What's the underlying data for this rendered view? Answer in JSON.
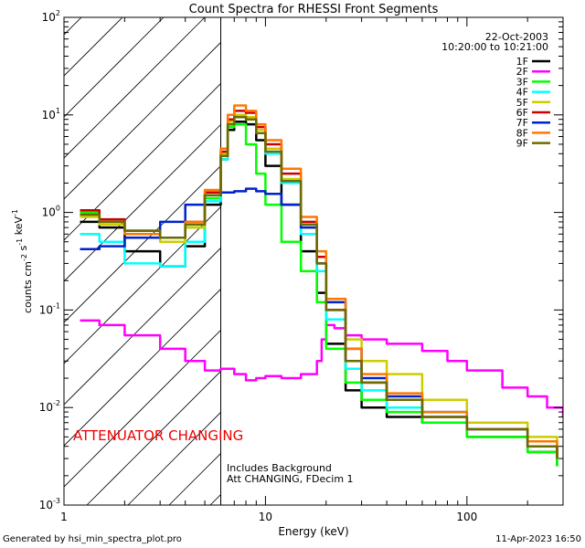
{
  "chart_data": {
    "type": "line",
    "title": "Count Spectra for RHESSI Front Segments",
    "xlabel": "Energy (keV)",
    "ylabel": "counts cm^-2 s^-1 keV^-1",
    "xscale": "log",
    "yscale": "log",
    "xlim": [
      1,
      300
    ],
    "ylim": [
      0.001,
      100
    ],
    "x_tick_labels": [
      "1",
      "10",
      "100"
    ],
    "y_tick_labels": [
      "10^-3",
      "10^-2",
      "10^-1",
      "10^0",
      "10^1",
      "10^2"
    ],
    "date": "22-Oct-2003",
    "time_range": "10:20:00 to 10:21:00",
    "attenuator_label": "ATTENUATOR CHANGING",
    "note_lines": [
      "Includes Background",
      "Att CHANGING, FDecim 1"
    ],
    "attenuator_region_max_keV": 6,
    "series": [
      {
        "name": "1F",
        "color": "#000000",
        "x": [
          1.2,
          1.5,
          2,
          3,
          4,
          5,
          6,
          6.5,
          7,
          8,
          9,
          10,
          12,
          15,
          18,
          20,
          25,
          30,
          40,
          60,
          100,
          200,
          280
        ],
        "y": [
          0.8,
          0.7,
          0.4,
          0.28,
          0.45,
          1.2,
          3.5,
          7.0,
          8.5,
          8.0,
          5.5,
          3.0,
          1.2,
          0.4,
          0.15,
          0.045,
          0.015,
          0.01,
          0.008,
          0.007,
          0.005,
          0.0035,
          0.0025
        ]
      },
      {
        "name": "2F",
        "color": "#ff00ff",
        "x": [
          1.2,
          1.5,
          2,
          3,
          4,
          5,
          6,
          7,
          8,
          9,
          10,
          12,
          15,
          18,
          19,
          20,
          22,
          25,
          30,
          40,
          60,
          80,
          100,
          150,
          200,
          250,
          300
        ],
        "y": [
          0.078,
          0.07,
          0.055,
          0.04,
          0.03,
          0.024,
          0.025,
          0.022,
          0.019,
          0.02,
          0.021,
          0.02,
          0.022,
          0.03,
          0.05,
          0.07,
          0.065,
          0.055,
          0.05,
          0.045,
          0.038,
          0.03,
          0.024,
          0.016,
          0.013,
          0.01,
          0.008
        ]
      },
      {
        "name": "3F",
        "color": "#00ff00",
        "x": [
          1.2,
          1.5,
          2,
          3,
          4,
          5,
          6,
          6.5,
          7,
          8,
          9,
          10,
          12,
          15,
          18,
          20,
          25,
          30,
          40,
          60,
          100,
          200,
          280
        ],
        "y": [
          1.0,
          0.8,
          0.6,
          0.55,
          0.7,
          1.4,
          3.8,
          7.5,
          8.0,
          5.0,
          2.5,
          1.2,
          0.5,
          0.25,
          0.12,
          0.04,
          0.018,
          0.012,
          0.009,
          0.007,
          0.005,
          0.0035,
          0.0025
        ]
      },
      {
        "name": "4F",
        "color": "#00ffff",
        "x": [
          1.2,
          1.5,
          2,
          3,
          4,
          5,
          6,
          6.5,
          7,
          8,
          9,
          10,
          12,
          15,
          18,
          20,
          25,
          30,
          40,
          60,
          100,
          200,
          280
        ],
        "y": [
          0.6,
          0.5,
          0.3,
          0.28,
          0.5,
          1.3,
          3.5,
          8.0,
          9.5,
          9.0,
          6.5,
          4.0,
          2.0,
          0.6,
          0.25,
          0.08,
          0.025,
          0.015,
          0.01,
          0.008,
          0.006,
          0.004,
          0.003
        ]
      },
      {
        "name": "5F",
        "color": "#cccc00",
        "x": [
          1.2,
          1.5,
          2,
          3,
          4,
          5,
          6,
          6.5,
          7,
          8,
          9,
          10,
          12,
          15,
          18,
          20,
          25,
          30,
          40,
          60,
          100,
          200,
          280
        ],
        "y": [
          0.9,
          0.75,
          0.6,
          0.5,
          0.7,
          1.5,
          4.0,
          8.5,
          10.0,
          9.5,
          7.0,
          4.5,
          2.2,
          0.7,
          0.3,
          0.12,
          0.05,
          0.03,
          0.022,
          0.012,
          0.007,
          0.005,
          0.0035
        ]
      },
      {
        "name": "6F",
        "color": "#cc0000",
        "x": [
          1.2,
          1.5,
          2,
          3,
          4,
          5,
          6,
          6.5,
          7,
          8,
          9,
          10,
          12,
          15,
          18,
          20,
          25,
          30,
          40,
          60,
          100,
          200,
          280
        ],
        "y": [
          1.05,
          0.85,
          0.65,
          0.55,
          0.8,
          1.6,
          4.2,
          9.0,
          11.0,
          10.5,
          7.5,
          5.0,
          2.5,
          0.8,
          0.35,
          0.1,
          0.03,
          0.018,
          0.012,
          0.008,
          0.006,
          0.004,
          0.003
        ]
      },
      {
        "name": "7F",
        "color": "#0022cc",
        "x": [
          1.2,
          1.5,
          2,
          3,
          4,
          5,
          6,
          7,
          8,
          9,
          10,
          12,
          15,
          18,
          20,
          25,
          30,
          40,
          60,
          100,
          200,
          280
        ],
        "y": [
          0.42,
          0.45,
          0.55,
          0.8,
          1.2,
          1.5,
          1.6,
          1.65,
          1.75,
          1.65,
          1.55,
          1.2,
          0.7,
          0.3,
          0.12,
          0.04,
          0.02,
          0.013,
          0.009,
          0.006,
          0.004,
          0.003
        ]
      },
      {
        "name": "8F",
        "color": "#ff7700",
        "x": [
          1.2,
          1.5,
          2,
          3,
          4,
          5,
          6,
          6.5,
          7,
          8,
          9,
          10,
          12,
          15,
          18,
          20,
          25,
          30,
          40,
          60,
          100,
          200,
          280
        ],
        "y": [
          0.95,
          0.8,
          0.6,
          0.55,
          0.8,
          1.7,
          4.5,
          10.0,
          12.5,
          11.0,
          8.0,
          5.5,
          2.8,
          0.9,
          0.4,
          0.13,
          0.04,
          0.022,
          0.014,
          0.009,
          0.006,
          0.0045,
          0.003
        ]
      },
      {
        "name": "9F",
        "color": "#6b6b00",
        "x": [
          1.2,
          1.5,
          2,
          3,
          4,
          5,
          6,
          6.5,
          7,
          8,
          9,
          10,
          12,
          15,
          18,
          20,
          25,
          30,
          40,
          60,
          100,
          200,
          280
        ],
        "y": [
          0.95,
          0.8,
          0.65,
          0.55,
          0.75,
          1.5,
          3.8,
          8.0,
          9.5,
          9.0,
          6.5,
          4.2,
          2.1,
          0.75,
          0.3,
          0.1,
          0.03,
          0.018,
          0.012,
          0.008,
          0.006,
          0.004,
          0.003
        ]
      }
    ]
  },
  "footer": {
    "left": "Generated by hsi_min_spectra_plot.pro",
    "right": "11-Apr-2023 16:50"
  }
}
